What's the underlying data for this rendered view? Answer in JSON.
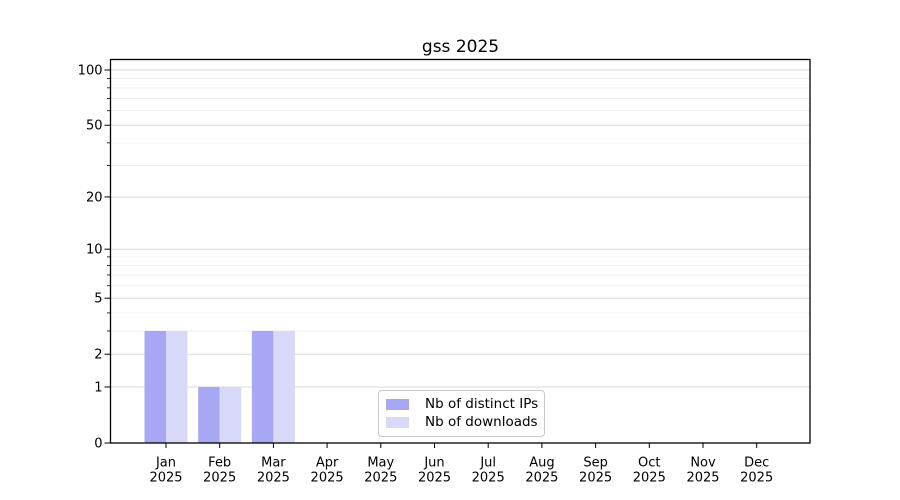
{
  "title": "gss 2025",
  "legend": {
    "items": [
      {
        "label": "Nb of distinct IPs",
        "color": "#a7a7f4"
      },
      {
        "label": "Nb of downloads",
        "color": "#d8d8f8"
      }
    ]
  },
  "chart_data": {
    "type": "bar",
    "title": "gss 2025",
    "categories": [
      "Jan",
      "Feb",
      "Mar",
      "Apr",
      "May",
      "Jun",
      "Jul",
      "Aug",
      "Sep",
      "Oct",
      "Nov",
      "Dec"
    ],
    "category_year": "2025",
    "series": [
      {
        "name": "Nb of distinct IPs",
        "color": "#a7a7f4",
        "values": [
          3,
          1,
          3,
          0,
          0,
          0,
          0,
          0,
          0,
          0,
          0,
          0
        ]
      },
      {
        "name": "Nb of downloads",
        "color": "#d8d8f8",
        "values": [
          3,
          1,
          3,
          0,
          0,
          0,
          0,
          0,
          0,
          0,
          0,
          0
        ]
      }
    ],
    "yscale": "log1p",
    "ytick_values": [
      0,
      1,
      2,
      5,
      10,
      20,
      50,
      100
    ],
    "ytick_labels": [
      "0",
      "1",
      "2",
      "5",
      "10",
      "20",
      "50",
      "100"
    ],
    "minor_ytick_values": [
      3,
      4,
      6,
      7,
      8,
      9,
      30,
      40,
      60,
      70,
      80,
      90
    ],
    "ylim": [
      0,
      116
    ],
    "grid": true,
    "legend_position": "bottom-center-inside",
    "colors": {
      "grid_major": "#d8d8d8",
      "grid_minor": "#efefef",
      "axis": "#000000",
      "background": "#ffffff"
    }
  }
}
